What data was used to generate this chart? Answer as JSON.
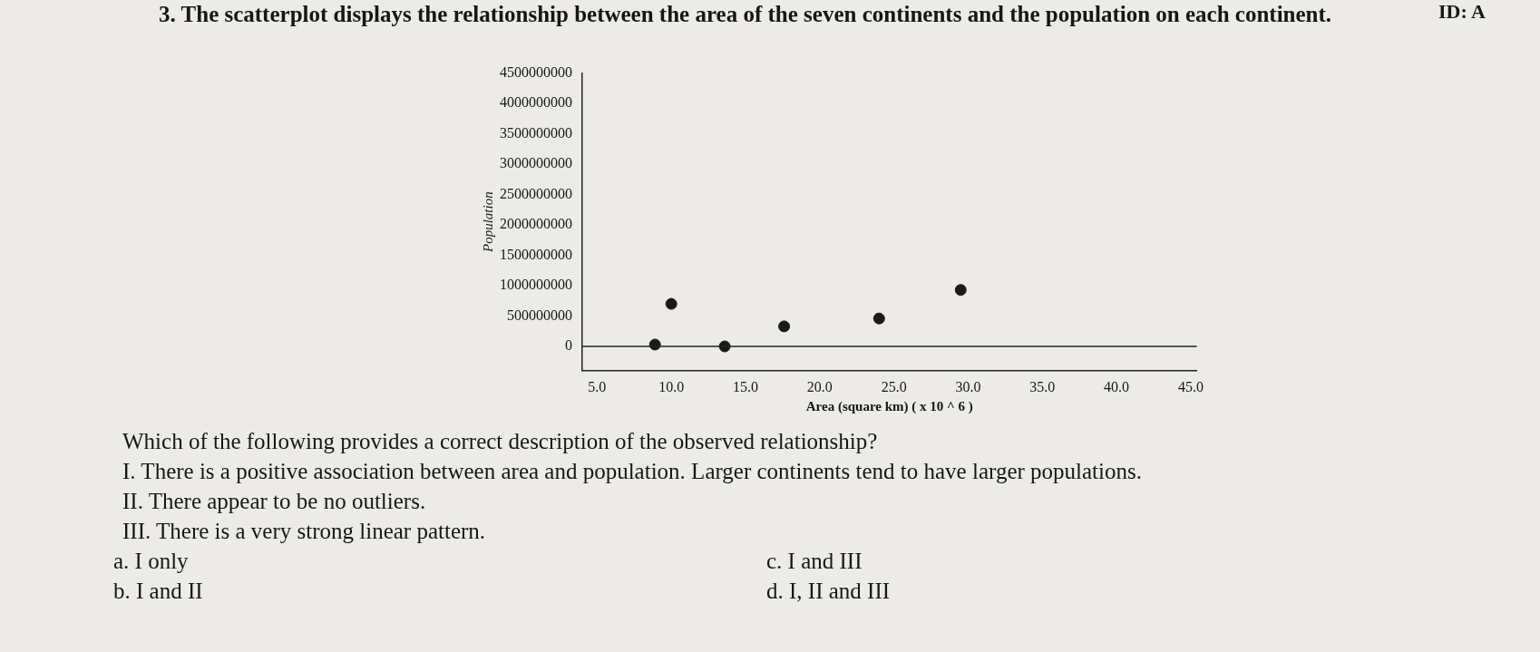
{
  "chart_data": {
    "type": "scatter",
    "title": "3. The scatterplot displays the relationship between the area of the seven continents and the population on each continent.",
    "xlabel": "Area (square km) ( x 10 ^ 6 )",
    "ylabel": "Population",
    "x": [
      8.9,
      10.0,
      13.6,
      17.6,
      24.0,
      29.5
    ],
    "series": [
      {
        "color": "#1a1a1a",
        "values": [
          30000000,
          700000000,
          0,
          330000000,
          460000000,
          930000000
        ]
      }
    ],
    "xlim": [
      4,
      45.4
    ],
    "ylim": [
      -400000000,
      4500000000
    ],
    "xticks": [
      {
        "value": 5,
        "label": "5.0"
      },
      {
        "value": 10,
        "label": "10.0"
      },
      {
        "value": 15,
        "label": "15.0"
      },
      {
        "value": 20,
        "label": "20.0"
      },
      {
        "value": 25,
        "label": "25.0"
      },
      {
        "value": 30,
        "label": "30.0"
      },
      {
        "value": 35,
        "label": "35.0"
      },
      {
        "value": 40,
        "label": "40.0"
      },
      {
        "value": 45,
        "label": "45.0"
      }
    ],
    "yticks": [
      0,
      500000000,
      1000000000,
      1500000000,
      2000000000,
      2500000000,
      3000000000,
      3500000000,
      4000000000,
      4500000000
    ],
    "ref_lines": [
      {
        "axis": "y",
        "value": 0,
        "color": "#222222"
      }
    ],
    "marker": "circle",
    "grid": false,
    "legend": false,
    "annotations": [
      "ID: A",
      "Which of the following provides a correct description of the observed relationship?",
      "I. There is a positive association between area and population. Larger continents tend to have larger populations.",
      "II. There appear to be no outliers.",
      "III. There is a very strong linear pattern.",
      "a.   I only",
      "c.   I and III",
      "b.   I and II",
      "d.   I, II and III"
    ]
  }
}
